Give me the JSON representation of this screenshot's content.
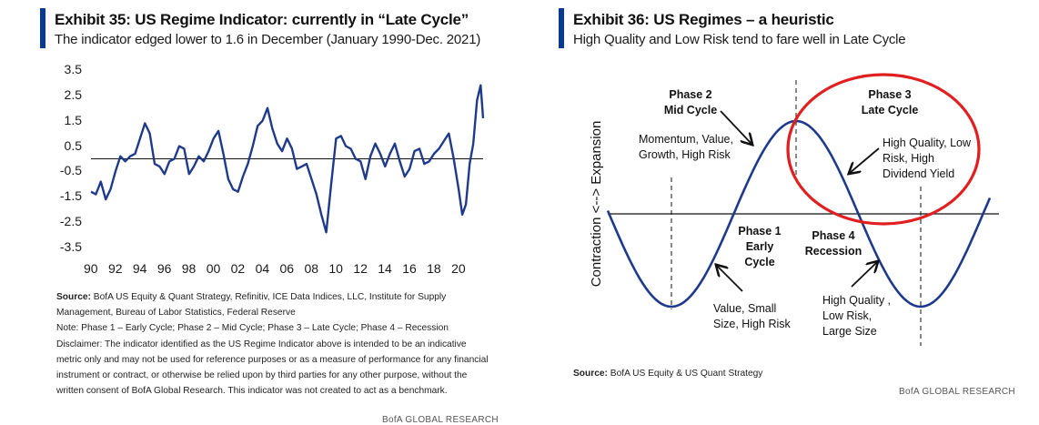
{
  "chart_data": [
    {
      "type": "line",
      "title": "Exhibit 35: US Regime Indicator: currently in “Late Cycle”",
      "subtitle": "The indicator edged lower to 1.6 in December (January 1990-Dec. 2021)",
      "xlabel": "",
      "ylabel": "",
      "ylim": [
        -3.5,
        3.5
      ],
      "xlim": [
        1990,
        2022
      ],
      "yticks": [
        "3.5",
        "2.5",
        "1.5",
        "0.5",
        "-0.5",
        "-1.5",
        "-2.5",
        "-3.5"
      ],
      "xticks": [
        "90",
        "92",
        "94",
        "96",
        "98",
        "00",
        "02",
        "04",
        "06",
        "08",
        "10",
        "12",
        "14",
        "16",
        "18",
        "20"
      ],
      "reference_line": 0,
      "line_color": "#1f3a8c",
      "series": [
        {
          "x": [
            1990.0,
            1990.4,
            1990.8,
            1991.2,
            1991.6,
            1992.0,
            1992.4,
            1992.8,
            1993.2,
            1993.6,
            1994.0,
            1994.4,
            1994.8,
            1995.2,
            1995.6,
            1996.0,
            1996.4,
            1996.8,
            1997.2,
            1997.6,
            1998.0,
            1998.4,
            1998.8,
            1999.2,
            1999.6,
            2000.0,
            2000.4,
            2000.8,
            2001.2,
            2001.6,
            2002.0,
            2002.4,
            2002.8,
            2003.2,
            2003.6,
            2004.0,
            2004.4,
            2004.8,
            2005.2,
            2005.6,
            2006.0,
            2006.4,
            2006.8,
            2007.2,
            2007.6,
            2008.0,
            2008.4,
            2008.8,
            2009.2,
            2009.6,
            2010.0,
            2010.4,
            2010.8,
            2011.2,
            2011.6,
            2012.0,
            2012.4,
            2012.8,
            2013.2,
            2013.6,
            2014.0,
            2014.4,
            2014.8,
            2015.2,
            2015.6,
            2016.0,
            2016.4,
            2016.8,
            2017.2,
            2017.6,
            2018.0,
            2018.4,
            2018.8,
            2019.2,
            2019.6,
            2020.0,
            2020.3,
            2020.6,
            2020.9,
            2021.2,
            2021.5,
            2021.8,
            2022.0
          ],
          "y": [
            -1.3,
            -1.4,
            -0.9,
            -1.6,
            -1.2,
            -0.5,
            0.1,
            -0.1,
            0.1,
            0.2,
            0.8,
            1.4,
            1.0,
            -0.2,
            -0.3,
            -0.6,
            -0.1,
            0.0,
            0.5,
            0.4,
            -0.6,
            -0.3,
            0.1,
            -0.1,
            0.3,
            0.8,
            1.1,
            0.2,
            -0.8,
            -1.2,
            -1.3,
            -0.7,
            -0.2,
            0.5,
            1.3,
            1.5,
            2.0,
            1.2,
            0.6,
            0.3,
            0.8,
            0.4,
            -0.4,
            -0.3,
            -0.2,
            -0.8,
            -1.4,
            -2.2,
            -2.9,
            -1.0,
            0.8,
            0.9,
            0.5,
            0.4,
            0.0,
            -0.1,
            -0.8,
            0.1,
            0.6,
            0.2,
            -0.3,
            0.2,
            0.6,
            -0.1,
            -0.7,
            -0.4,
            0.3,
            0.4,
            -0.2,
            -0.1,
            0.2,
            0.4,
            0.7,
            1.0,
            0.0,
            -1.2,
            -2.2,
            -1.8,
            -0.2,
            0.6,
            2.3,
            2.9,
            1.6
          ]
        }
      ]
    },
    {
      "type": "diagram",
      "title": "Exhibit 36: US Regimes – a heuristic",
      "subtitle": "High Quality and Low Risk tend to fare well in Late Cycle",
      "ylabel": "Contraction <--> Expansion",
      "highlight_color": "#e02020",
      "line_color": "#1f3a8c",
      "phases": [
        {
          "name": "Phase 1",
          "stage": "Early",
          "stage2": "Cycle",
          "description": [
            "Value, Small",
            "Size, High Risk"
          ]
        },
        {
          "name": "Phase 2",
          "stage": "Mid Cycle",
          "description": [
            "Momentum, Value,",
            "Growth, High Risk"
          ]
        },
        {
          "name": "Phase 3",
          "stage": "Late Cycle",
          "description": [
            "High Quality, Low",
            "Risk, High",
            "Dividend Yield"
          ]
        },
        {
          "name": "Phase 4",
          "stage": "Recession",
          "description": [
            "High Quality ,",
            "Low Risk,",
            "Large Size"
          ]
        }
      ]
    }
  ],
  "left_notes": {
    "source_label": "Source:",
    "source_text": "BofA US Equity & Quant Strategy, Refinitiv, ICE Data Indices, LLC, Institute for Supply Management, Bureau of Labor Statistics, Federal Reserve",
    "note": "Note: Phase 1 – Early Cycle; Phase 2 – Mid Cycle; Phase 3 – Late Cycle; Phase 4 – Recession",
    "disclaimer": "Disclaimer: The indicator identified as the US Regime Indicator above is intended to be an indicative metric only and may not be used for reference purposes or as a measure of performance for any financial instrument or contract, or otherwise be relied upon by third parties for any other purpose, without the written consent of BofA Global Research. This indicator was not created to act as a benchmark."
  },
  "right_notes": {
    "source_label": "Source:",
    "source_text": "BofA US Equity & US Quant Strategy"
  },
  "brand": "BofA GLOBAL RESEARCH"
}
